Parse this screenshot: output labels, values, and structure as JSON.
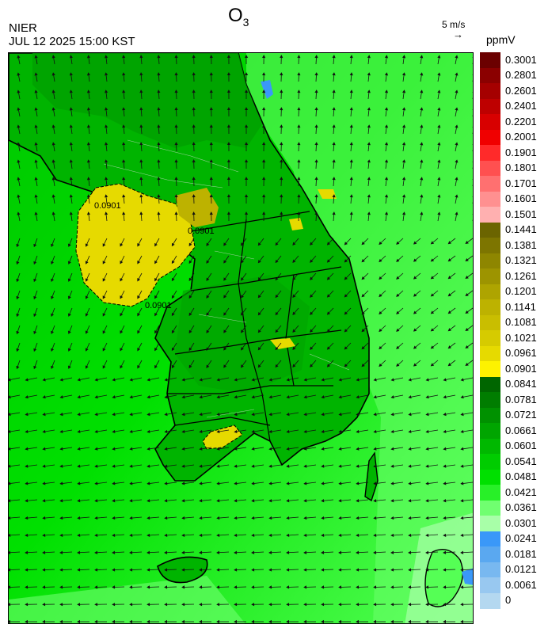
{
  "header": {
    "species": "O",
    "species_sub": "3",
    "agency": "NIER",
    "datetime": "JUL 12 2025 15:00 KST",
    "wind_reference": "5 m/s",
    "unit": "ppmV"
  },
  "legend": {
    "labels": [
      "0.3001",
      "0.2801",
      "0.2601",
      "0.2401",
      "0.2201",
      "0.2001",
      "0.1901",
      "0.1801",
      "0.1701",
      "0.1601",
      "0.1501",
      "0.1441",
      "0.1381",
      "0.1321",
      "0.1261",
      "0.1201",
      "0.1141",
      "0.1081",
      "0.1021",
      "0.0961",
      "0.0901",
      "0.0841",
      "0.0781",
      "0.0721",
      "0.0661",
      "0.0601",
      "0.0541",
      "0.0481",
      "0.0421",
      "0.0361",
      "0.0301",
      "0.0241",
      "0.0181",
      "0.0121",
      "0.0061",
      "0"
    ],
    "colors": [
      "#6b0000",
      "#8b0000",
      "#a50000",
      "#be0000",
      "#d80000",
      "#f00000",
      "#ff2a2a",
      "#ff5050",
      "#ff7070",
      "#ff9090",
      "#ffb0b0",
      "#6b6400",
      "#7d7500",
      "#8e8600",
      "#9d9400",
      "#aea400",
      "#bdb200",
      "#c9be00",
      "#d6cb00",
      "#e6da00",
      "#fdf200",
      "#006600",
      "#007d00",
      "#009100",
      "#00a500",
      "#00b800",
      "#00cc00",
      "#00e000",
      "#28f028",
      "#70ff70",
      "#a8ffa8",
      "#3a98f8",
      "#5aa8f0",
      "#78b8f0",
      "#98c8f0",
      "#b4d8f0"
    ]
  },
  "map": {
    "contour_labels": [
      "0.0901",
      "0.0901",
      "0.0901"
    ],
    "colors": {
      "sea": "#00e000",
      "sea_light": "#55ff55",
      "land": "#00b400",
      "land_dark": "#00a000",
      "hotspot": "#e6da00",
      "hotspot_dark": "#bdb200"
    }
  }
}
